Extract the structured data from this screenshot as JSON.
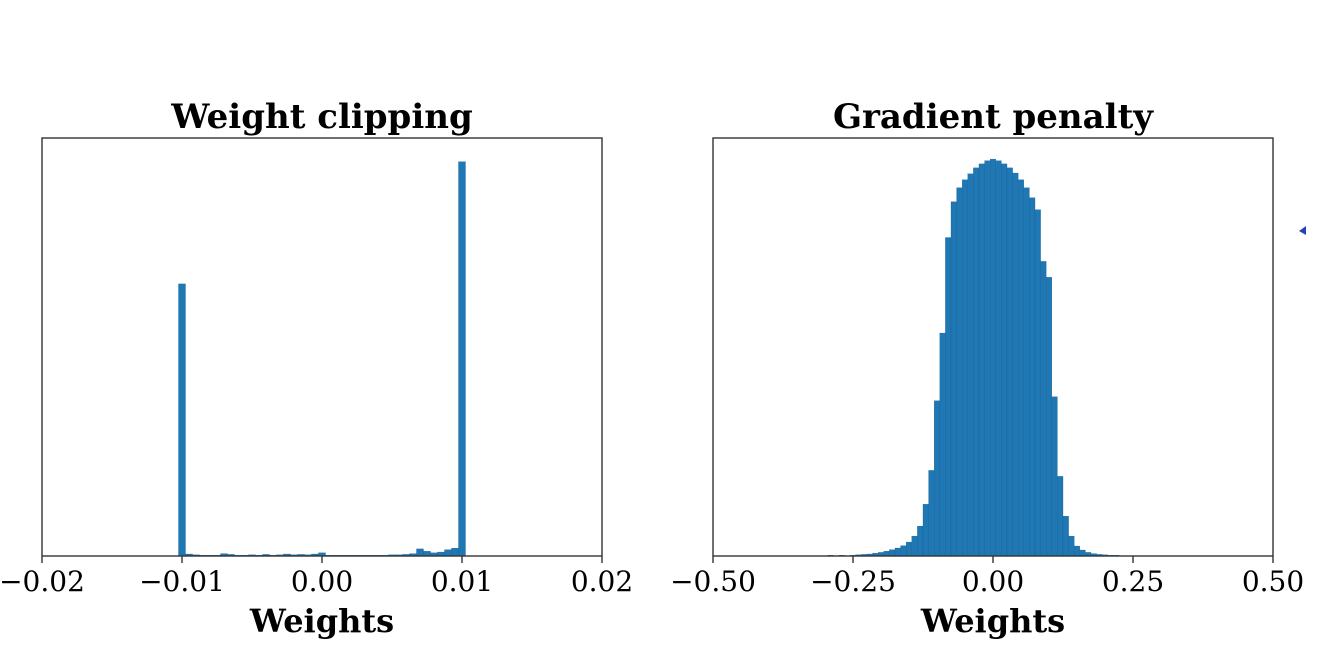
{
  "colors": {
    "bar": "#1f77b4",
    "edge": "#1a5f8f",
    "axis": "#333333"
  },
  "chart_data": [
    {
      "type": "bar",
      "title": "Weight clipping",
      "xlabel": "Weights",
      "ylabel": "",
      "xlim": [
        -0.02,
        0.02
      ],
      "ylim": [
        0,
        1.06
      ],
      "xticks": [
        -0.02,
        -0.01,
        0.0,
        0.01,
        0.02
      ],
      "xtick_labels": [
        "−0.02",
        "−0.01",
        "0.00",
        "0.01",
        "0.02"
      ],
      "grid": false,
      "bin_width": 0.0005,
      "bars": [
        {
          "x": -0.01,
          "height": 0.69
        },
        {
          "x": -0.0095,
          "height": 0.005
        },
        {
          "x": -0.009,
          "height": 0.003
        },
        {
          "x": -0.0085,
          "height": 0.002
        },
        {
          "x": -0.008,
          "height": 0.002
        },
        {
          "x": -0.0075,
          "height": 0.002
        },
        {
          "x": -0.007,
          "height": 0.006
        },
        {
          "x": -0.0065,
          "height": 0.004
        },
        {
          "x": -0.006,
          "height": 0.002
        },
        {
          "x": -0.0055,
          "height": 0.002
        },
        {
          "x": -0.005,
          "height": 0.003
        },
        {
          "x": -0.0045,
          "height": 0.002
        },
        {
          "x": -0.004,
          "height": 0.004
        },
        {
          "x": -0.0035,
          "height": 0.002
        },
        {
          "x": -0.003,
          "height": 0.003
        },
        {
          "x": -0.0025,
          "height": 0.005
        },
        {
          "x": -0.002,
          "height": 0.003
        },
        {
          "x": -0.0015,
          "height": 0.004
        },
        {
          "x": -0.001,
          "height": 0.003
        },
        {
          "x": -0.0005,
          "height": 0.005
        },
        {
          "x": 0.0,
          "height": 0.008
        },
        {
          "x": 0.0005,
          "height": 0.002
        },
        {
          "x": 0.001,
          "height": 0.002
        },
        {
          "x": 0.0015,
          "height": 0.002
        },
        {
          "x": 0.002,
          "height": 0.002
        },
        {
          "x": 0.0025,
          "height": 0.002
        },
        {
          "x": 0.003,
          "height": 0.002
        },
        {
          "x": 0.0035,
          "height": 0.002
        },
        {
          "x": 0.004,
          "height": 0.002
        },
        {
          "x": 0.0045,
          "height": 0.002
        },
        {
          "x": 0.005,
          "height": 0.003
        },
        {
          "x": 0.0055,
          "height": 0.003
        },
        {
          "x": 0.006,
          "height": 0.004
        },
        {
          "x": 0.0065,
          "height": 0.006
        },
        {
          "x": 0.007,
          "height": 0.018
        },
        {
          "x": 0.0075,
          "height": 0.012
        },
        {
          "x": 0.008,
          "height": 0.008
        },
        {
          "x": 0.0085,
          "height": 0.01
        },
        {
          "x": 0.009,
          "height": 0.016
        },
        {
          "x": 0.0095,
          "height": 0.02
        },
        {
          "x": 0.01,
          "height": 1.0
        }
      ]
    },
    {
      "type": "bar",
      "title": "Gradient penalty",
      "xlabel": "Weights",
      "ylabel": "",
      "xlim": [
        -0.5,
        0.5
      ],
      "ylim": [
        0,
        1.05
      ],
      "xticks": [
        -0.5,
        -0.25,
        0.0,
        0.25,
        0.5
      ],
      "xtick_labels": [
        "−0.50",
        "−0.25",
        "0.00",
        "0.25",
        "0.50"
      ],
      "grid": false,
      "bin_width": 0.01,
      "bars": [
        {
          "x": -0.29,
          "height": 0.001
        },
        {
          "x": -0.27,
          "height": 0.001
        },
        {
          "x": -0.25,
          "height": 0.002
        },
        {
          "x": -0.24,
          "height": 0.003
        },
        {
          "x": -0.23,
          "height": 0.004
        },
        {
          "x": -0.22,
          "height": 0.005
        },
        {
          "x": -0.21,
          "height": 0.007
        },
        {
          "x": -0.2,
          "height": 0.009
        },
        {
          "x": -0.19,
          "height": 0.012
        },
        {
          "x": -0.18,
          "height": 0.016
        },
        {
          "x": -0.17,
          "height": 0.02
        },
        {
          "x": -0.16,
          "height": 0.026
        },
        {
          "x": -0.15,
          "height": 0.035
        },
        {
          "x": -0.14,
          "height": 0.05
        },
        {
          "x": -0.13,
          "height": 0.075
        },
        {
          "x": -0.12,
          "height": 0.13
        },
        {
          "x": -0.11,
          "height": 0.215
        },
        {
          "x": -0.1,
          "height": 0.39
        },
        {
          "x": -0.09,
          "height": 0.56
        },
        {
          "x": -0.08,
          "height": 0.8
        },
        {
          "x": -0.07,
          "height": 0.89
        },
        {
          "x": -0.06,
          "height": 0.925
        },
        {
          "x": -0.05,
          "height": 0.945
        },
        {
          "x": -0.04,
          "height": 0.96
        },
        {
          "x": -0.03,
          "height": 0.975
        },
        {
          "x": -0.02,
          "height": 0.985
        },
        {
          "x": -0.01,
          "height": 0.993
        },
        {
          "x": 0.0,
          "height": 0.997
        },
        {
          "x": 0.01,
          "height": 0.993
        },
        {
          "x": 0.02,
          "height": 0.985
        },
        {
          "x": 0.03,
          "height": 0.975
        },
        {
          "x": 0.04,
          "height": 0.962
        },
        {
          "x": 0.05,
          "height": 0.945
        },
        {
          "x": 0.06,
          "height": 0.925
        },
        {
          "x": 0.07,
          "height": 0.9
        },
        {
          "x": 0.08,
          "height": 0.87
        },
        {
          "x": 0.09,
          "height": 0.74
        },
        {
          "x": 0.1,
          "height": 0.7
        },
        {
          "x": 0.11,
          "height": 0.4
        },
        {
          "x": 0.12,
          "height": 0.2
        },
        {
          "x": 0.13,
          "height": 0.1
        },
        {
          "x": 0.14,
          "height": 0.05
        },
        {
          "x": 0.15,
          "height": 0.025
        },
        {
          "x": 0.16,
          "height": 0.015
        },
        {
          "x": 0.17,
          "height": 0.009
        },
        {
          "x": 0.18,
          "height": 0.006
        },
        {
          "x": 0.19,
          "height": 0.004
        },
        {
          "x": 0.2,
          "height": 0.003
        },
        {
          "x": 0.21,
          "height": 0.002
        },
        {
          "x": 0.22,
          "height": 0.001
        }
      ]
    }
  ]
}
